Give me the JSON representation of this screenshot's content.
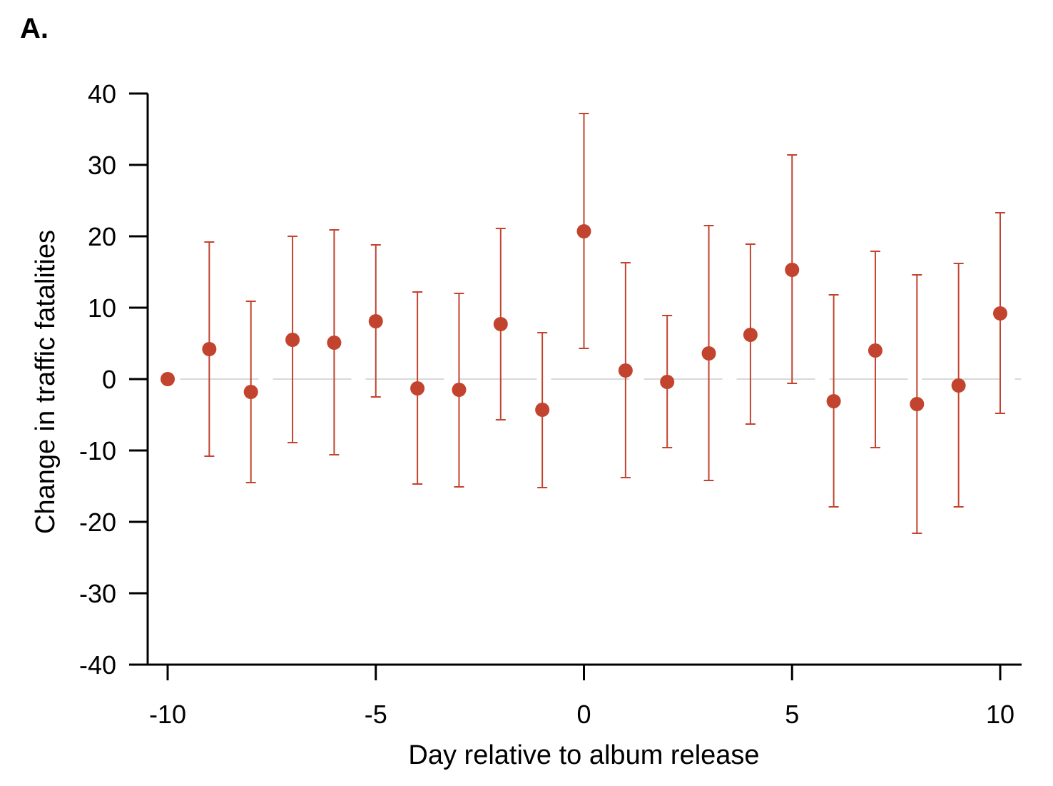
{
  "panel_label": "A.",
  "colors": {
    "marker": "#c2432e",
    "axis": "#000000",
    "zero_line": "#d9d9d9"
  },
  "chart_data": {
    "type": "scatter",
    "title": "",
    "xlabel": "Day relative to album release",
    "ylabel": "Change in traffic fatalities",
    "xlim": [
      -10.5,
      10.5
    ],
    "ylim": [
      -40,
      40
    ],
    "xticks": [
      -10,
      -5,
      0,
      5,
      10
    ],
    "xtick_labels": [
      "-10",
      "-5",
      "0",
      "5",
      "10"
    ],
    "yticks": [
      40,
      30,
      20,
      10,
      0,
      -10,
      -20,
      -30,
      -40
    ],
    "ytick_labels": [
      "40",
      "30",
      "20",
      "10",
      "0",
      "-10",
      "-20",
      "-30",
      "-40"
    ],
    "reference_line": 0,
    "grid": false,
    "legend": "none",
    "points": [
      {
        "x": -10,
        "y": 0,
        "lo": null,
        "hi": null
      },
      {
        "x": -9,
        "y": 4.2,
        "lo": -10.8,
        "hi": 19.2
      },
      {
        "x": -8,
        "y": -1.8,
        "lo": -14.5,
        "hi": 10.9
      },
      {
        "x": -7,
        "y": 5.5,
        "lo": -8.9,
        "hi": 20.0
      },
      {
        "x": -6,
        "y": 5.1,
        "lo": -10.6,
        "hi": 20.9
      },
      {
        "x": -5,
        "y": 8.1,
        "lo": -2.5,
        "hi": 18.8
      },
      {
        "x": -4,
        "y": -1.3,
        "lo": -14.7,
        "hi": 12.2
      },
      {
        "x": -3,
        "y": -1.5,
        "lo": -15.1,
        "hi": 12.0
      },
      {
        "x": -2,
        "y": 7.7,
        "lo": -5.7,
        "hi": 21.1
      },
      {
        "x": -1,
        "y": -4.3,
        "lo": -15.2,
        "hi": 6.5
      },
      {
        "x": 0,
        "y": 20.7,
        "lo": 4.3,
        "hi": 37.2
      },
      {
        "x": 1,
        "y": 1.2,
        "lo": -13.8,
        "hi": 16.3
      },
      {
        "x": 2,
        "y": -0.4,
        "lo": -9.6,
        "hi": 8.9
      },
      {
        "x": 3,
        "y": 3.6,
        "lo": -14.2,
        "hi": 21.5
      },
      {
        "x": 4,
        "y": 6.2,
        "lo": -6.3,
        "hi": 18.9
      },
      {
        "x": 5,
        "y": 15.3,
        "lo": -0.6,
        "hi": 31.4
      },
      {
        "x": 6,
        "y": -3.1,
        "lo": -17.9,
        "hi": 11.8
      },
      {
        "x": 7,
        "y": 4.0,
        "lo": -9.6,
        "hi": 17.9
      },
      {
        "x": 8,
        "y": -3.5,
        "lo": -21.6,
        "hi": 14.6
      },
      {
        "x": 9,
        "y": -0.9,
        "lo": -17.9,
        "hi": 16.2
      },
      {
        "x": 10,
        "y": 9.2,
        "lo": -4.8,
        "hi": 23.3
      }
    ]
  }
}
